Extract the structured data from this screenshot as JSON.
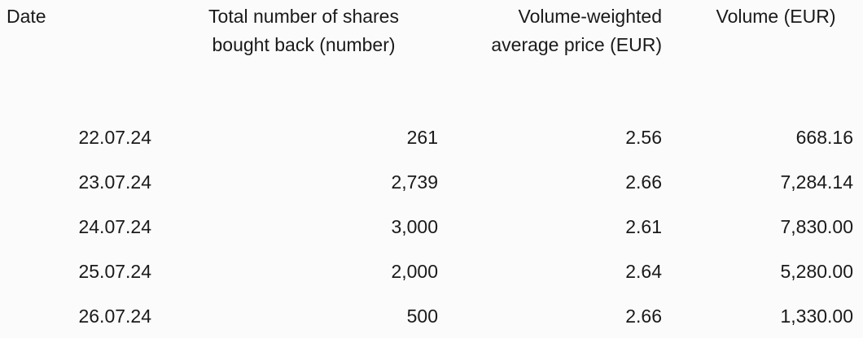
{
  "table": {
    "headers": [
      [
        "Date"
      ],
      [
        "Total number of shares",
        "bought back (number)"
      ],
      [
        "Volume-weighted",
        "average price (EUR)"
      ],
      [
        "Volume (EUR)"
      ]
    ],
    "rows": [
      [
        "22.07.24",
        "261",
        "2.56",
        "668.16"
      ],
      [
        "23.07.24",
        "2,739",
        "2.66",
        "7,284.14"
      ],
      [
        "24.07.24",
        "3,000",
        "2.61",
        "7,830.00"
      ],
      [
        "25.07.24",
        "2,000",
        "2.64",
        "5,280.00"
      ],
      [
        "26.07.24",
        "500",
        "2.66",
        "1,330.00"
      ]
    ]
  }
}
